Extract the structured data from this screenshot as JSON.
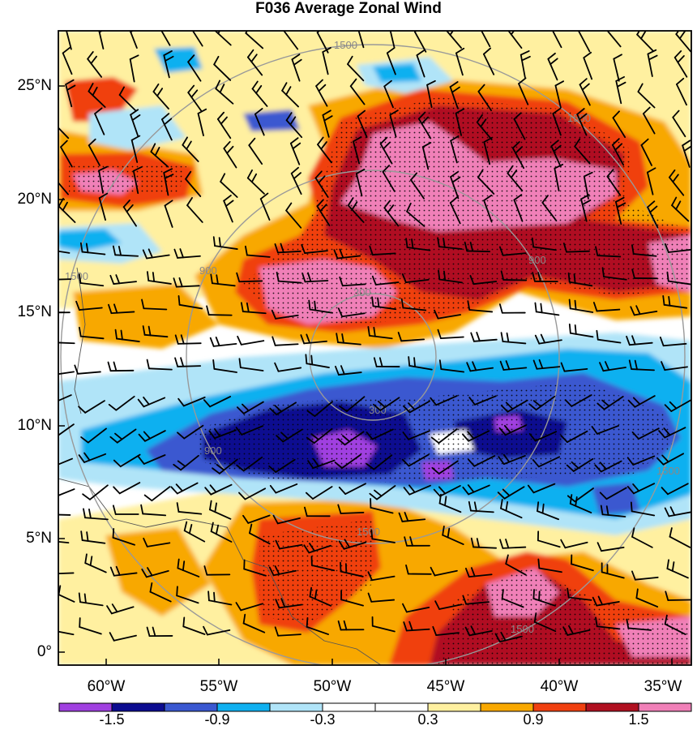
{
  "title": "F036 Average Zonal Wind",
  "lat_labels": [
    "25°N",
    "20°N",
    "15°N",
    "10°N",
    "5°N",
    "0°"
  ],
  "lon_labels": [
    "60°W",
    "55°W",
    "50°W",
    "45°W",
    "40°W",
    "35°W"
  ],
  "radius_labels": [
    "1500",
    "1500",
    "1500",
    "900",
    "900",
    "300",
    "300",
    "900",
    "1500",
    "1500",
    "1500"
  ],
  "colorbar": {
    "labels": [
      "-1.5",
      "-0.9",
      "-0.3",
      "0.3",
      "0.9",
      "1.5"
    ],
    "colors": [
      "#a040e0",
      "#0c0c90",
      "#3a58d0",
      "#10b0f0",
      "#b0e4f8",
      "#ffffff",
      "#ffffff",
      "#fff0a0",
      "#f8a800",
      "#f04010",
      "#b01020",
      "#f080b8"
    ]
  },
  "chart_data": {
    "type": "heatmap",
    "title": "F036 Average Zonal Wind",
    "x_range": [
      "63°W",
      "35°W"
    ],
    "y_range": [
      "1°S",
      "27.5°N"
    ],
    "contour_levels": [
      -1.5,
      -1.2,
      -0.9,
      -0.6,
      -0.3,
      0,
      0.3,
      0.6,
      0.9,
      1.2,
      1.5
    ],
    "range_rings_km": [
      300,
      900,
      1500
    ],
    "overlays": [
      "wind barbs",
      "stippling",
      "coastlines"
    ]
  }
}
